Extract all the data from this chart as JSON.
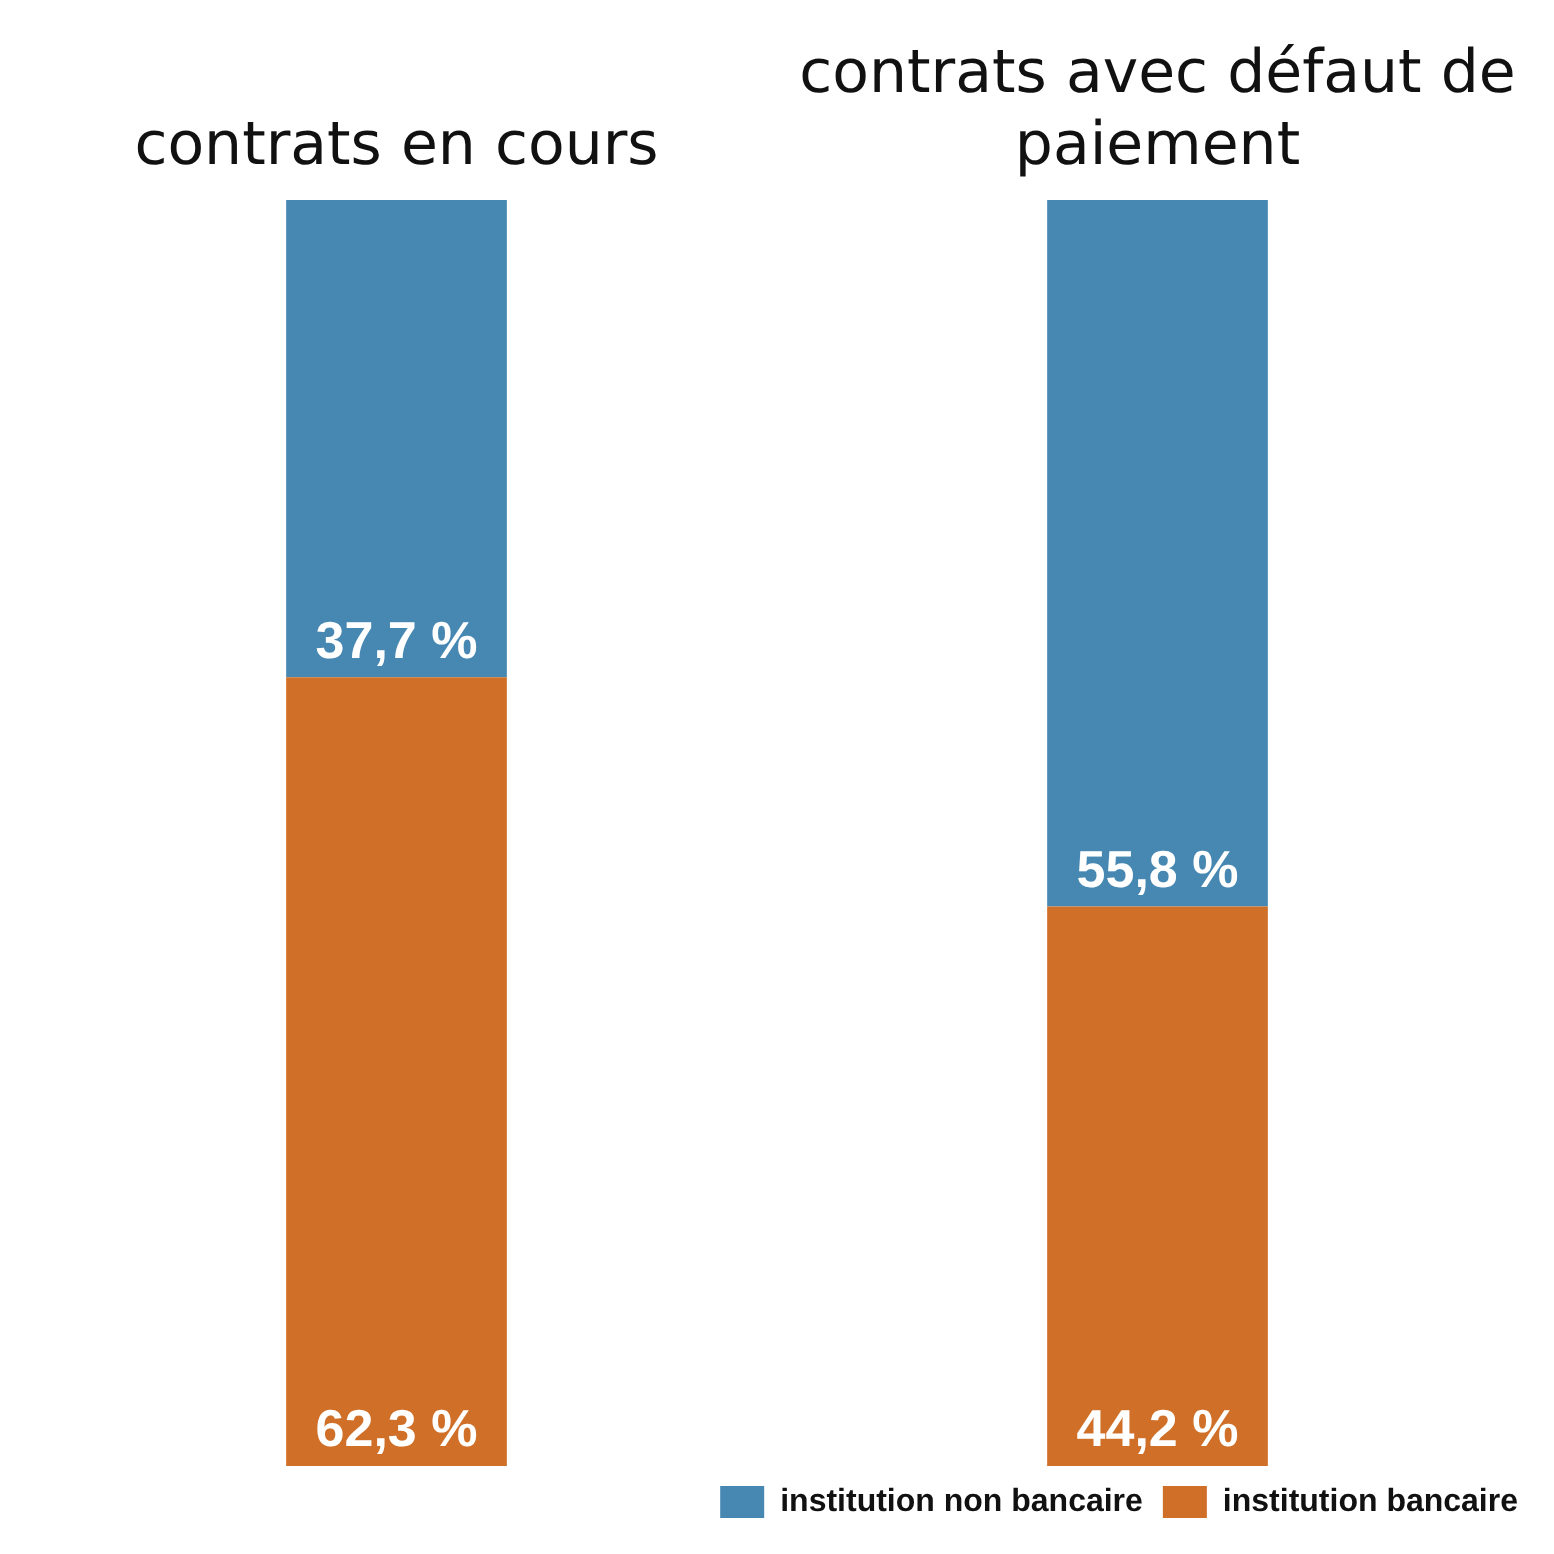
{
  "chart_data": {
    "type": "bar",
    "stacked": true,
    "categories": [
      "contrats en cours",
      "contrats avec défaut de paiement"
    ],
    "series": [
      {
        "name": "institution bancaire",
        "color": "#d07028",
        "values": [
          62.3,
          44.2
        ],
        "value_labels": [
          "62,3 %",
          "44,2 %"
        ]
      },
      {
        "name": "institution non bancaire",
        "color": "#4788b3",
        "values": [
          37.7,
          55.8
        ],
        "value_labels": [
          "37,7 %",
          "55,8 %"
        ]
      }
    ],
    "ylim": [
      0,
      100
    ],
    "tick_labels": "x",
    "grid": false,
    "legend": "bottom right"
  }
}
